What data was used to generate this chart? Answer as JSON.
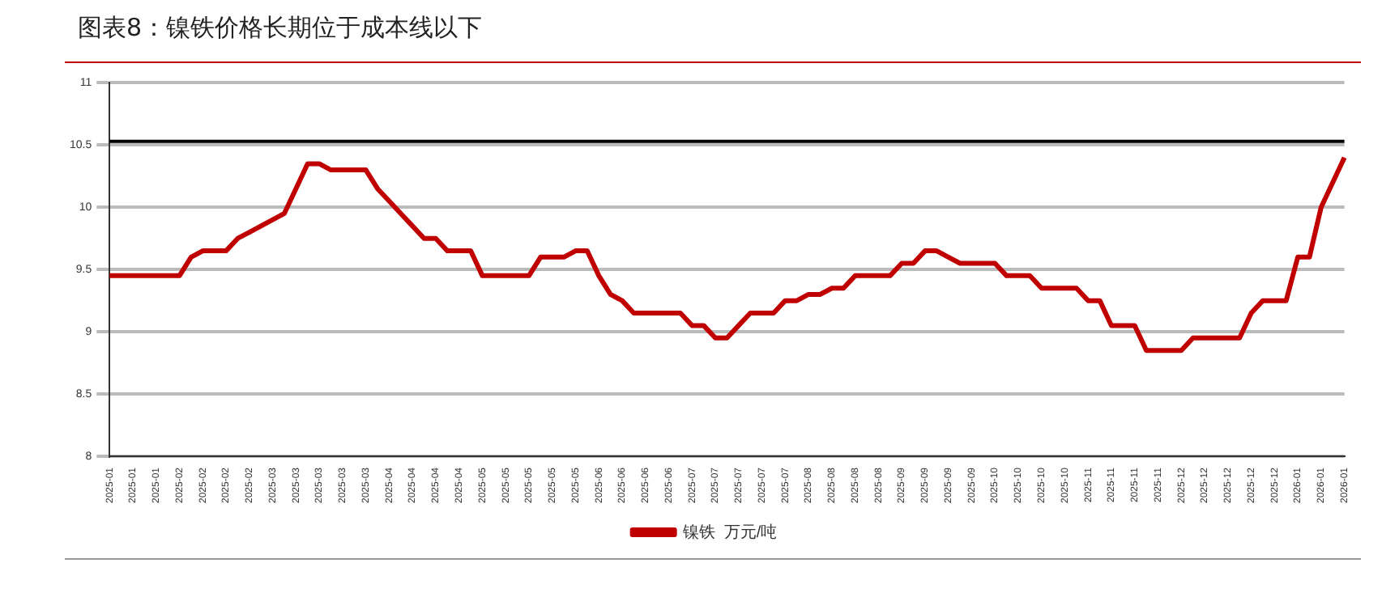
{
  "chart_data": {
    "type": "line",
    "title": "图表8：镍铁价格长期位于成本线以下",
    "categories": [
      "2025-01",
      null,
      "2025-01",
      null,
      "2025-01",
      null,
      "2025-02",
      null,
      "2025-02",
      null,
      "2025-02",
      null,
      "2025-02",
      null,
      "2025-03",
      null,
      "2025-03",
      null,
      "2025-03",
      null,
      "2025-03",
      null,
      "2025-03",
      null,
      "2025-04",
      null,
      "2025-04",
      null,
      "2025-04",
      null,
      "2025-04",
      null,
      "2025-05",
      null,
      "2025-05",
      null,
      "2025-05",
      null,
      "2025-05",
      null,
      "2025-05",
      null,
      "2025-06",
      null,
      "2025-06",
      null,
      "2025-06",
      null,
      "2025-06",
      null,
      "2025-07",
      null,
      "2025-07",
      null,
      "2025-07",
      null,
      "2025-07",
      null,
      "2025-07",
      null,
      "2025-08",
      null,
      "2025-08",
      null,
      "2025-08",
      null,
      "2025-08",
      null,
      "2025-09",
      null,
      "2025-09",
      null,
      "2025-09",
      null,
      "2025-09",
      null,
      "2025-10",
      null,
      "2025-10",
      null,
      "2025-10",
      null,
      "2025-10",
      null,
      "2025-11",
      null,
      "2025-11",
      null,
      "2025-11",
      null,
      "2025-11",
      null,
      "2025-12",
      null,
      "2025-12",
      null,
      "2025-12",
      null,
      "2025-12",
      null,
      "2025-12",
      null,
      "2026-01",
      null,
      "2026-01",
      null,
      "2026-01"
    ],
    "series": [
      {
        "name": "镍铁  万元/吨",
        "color": "#c00000",
        "values": [
          9.45,
          9.45,
          9.45,
          9.45,
          9.45,
          9.45,
          9.45,
          9.6,
          9.65,
          9.65,
          9.65,
          9.75,
          9.8,
          9.85,
          9.9,
          9.95,
          10.15,
          10.35,
          10.35,
          10.3,
          10.3,
          10.3,
          10.3,
          10.15,
          10.05,
          9.95,
          9.85,
          9.75,
          9.75,
          9.65,
          9.65,
          9.65,
          9.45,
          9.45,
          9.45,
          9.45,
          9.45,
          9.6,
          9.6,
          9.6,
          9.65,
          9.65,
          9.45,
          9.3,
          9.25,
          9.15,
          9.15,
          9.15,
          9.15,
          9.15,
          9.05,
          9.05,
          8.95,
          8.95,
          9.05,
          9.15,
          9.15,
          9.15,
          9.25,
          9.25,
          9.3,
          9.3,
          9.35,
          9.35,
          9.45,
          9.45,
          9.45,
          9.45,
          9.55,
          9.55,
          9.65,
          9.65,
          9.6,
          9.55,
          9.55,
          9.55,
          9.55,
          9.45,
          9.45,
          9.45,
          9.35,
          9.35,
          9.35,
          9.35,
          9.25,
          9.25,
          9.05,
          9.05,
          9.05,
          8.85,
          8.85,
          8.85,
          8.85,
          8.95,
          8.95,
          8.95,
          8.95,
          8.95,
          9.15,
          9.25,
          9.25,
          9.25,
          9.6,
          9.6,
          10.0,
          10.2,
          10.4
        ]
      }
    ],
    "ylim": [
      8,
      11
    ],
    "yticks": [
      8,
      8.5,
      9,
      9.5,
      10,
      10.5,
      11
    ],
    "ref_lines": [
      {
        "axis": "y",
        "value": 10.53,
        "color": "#000000"
      }
    ],
    "grid": "y",
    "legend": "bottom",
    "marker": "none",
    "line_style": "solid"
  }
}
